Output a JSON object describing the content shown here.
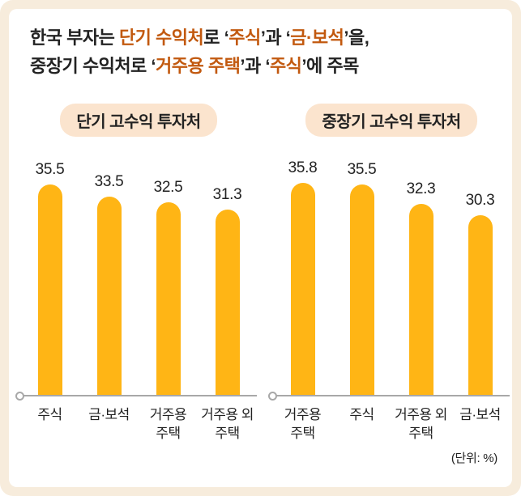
{
  "colors": {
    "outer_bg": "#f7ecdc",
    "pill_bg": "#fbe4ce",
    "bar": "#ffb515",
    "accent": "#c2590f",
    "text_dark": "#222222",
    "axis": "#a8a8a8"
  },
  "title": {
    "line1": [
      {
        "text": "한국 부자는 ",
        "hl": false
      },
      {
        "text": "단기 수익처",
        "hl": true
      },
      {
        "text": "로 ‘",
        "hl": false
      },
      {
        "text": "주식",
        "hl": true
      },
      {
        "text": "’과 ‘",
        "hl": false
      },
      {
        "text": "금·보석",
        "hl": true
      },
      {
        "text": "’을,",
        "hl": false
      }
    ],
    "line2": [
      {
        "text": "중장기 수익처로 ‘",
        "hl": false
      },
      {
        "text": "거주용 주택",
        "hl": true
      },
      {
        "text": "’과 ‘",
        "hl": false
      },
      {
        "text": "주식",
        "hl": true
      },
      {
        "text": "’에 주목",
        "hl": false
      }
    ]
  },
  "unit_label": "(단위: %)",
  "chart_data": [
    {
      "type": "bar",
      "title": "단기 고수익 투자처",
      "categories": [
        "주식",
        "금·보석",
        "거주용 주택",
        "거주용 외 주택"
      ],
      "values": [
        35.5,
        33.5,
        32.5,
        31.3
      ],
      "ylim": [
        0,
        40
      ],
      "unit": "%",
      "grid": false,
      "legend": "none",
      "bar_color": "#ffb515"
    },
    {
      "type": "bar",
      "title": "중장기 고수익 투자처",
      "categories": [
        "거주용 주택",
        "주식",
        "거주용 외 주택",
        "금·보석"
      ],
      "values": [
        35.8,
        35.5,
        32.3,
        30.3
      ],
      "ylim": [
        0,
        40
      ],
      "unit": "%",
      "grid": false,
      "legend": "none",
      "bar_color": "#ffb515"
    }
  ]
}
